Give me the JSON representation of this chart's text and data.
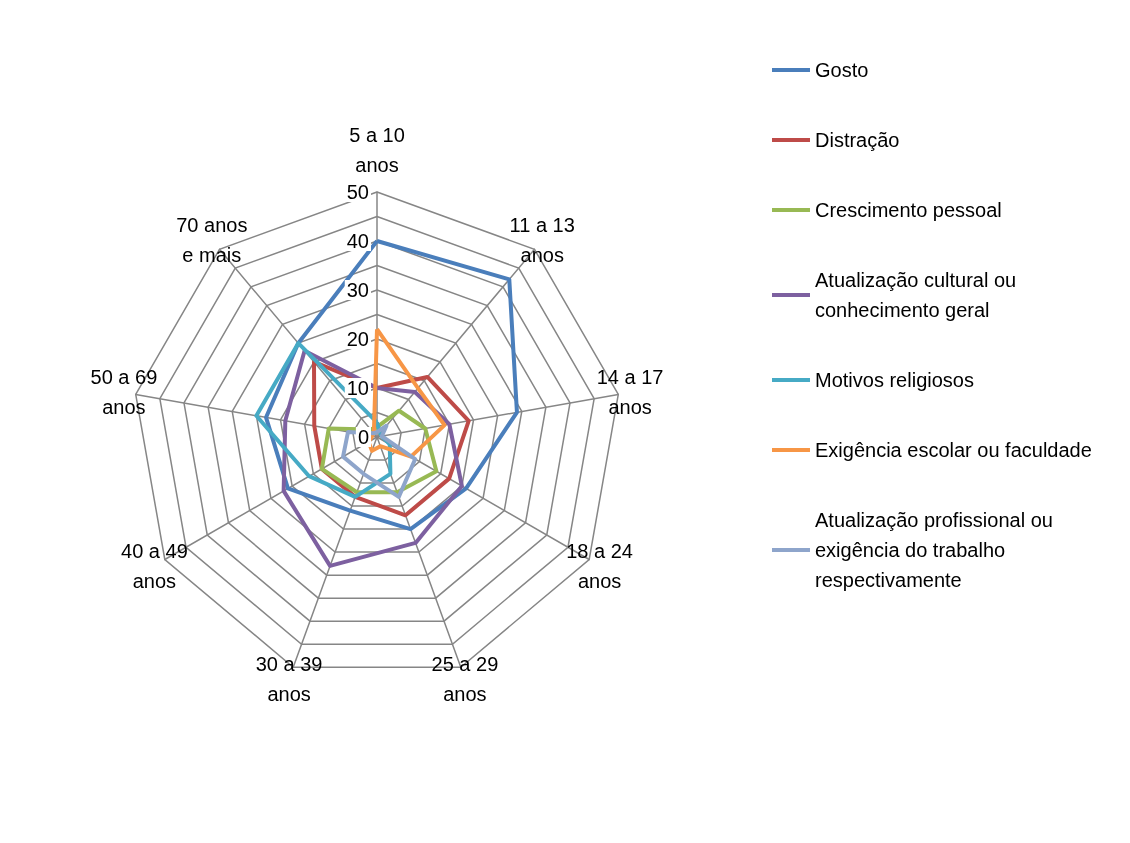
{
  "chart_data": {
    "type": "radar",
    "categories": [
      "5 a 10 anos",
      "11 a 13 anos",
      "14 a 17 anos",
      "18 a 24 anos",
      "25 a 29 anos",
      "30 a 39 anos",
      "40 a 49 anos",
      "50 a 69 anos",
      "70 anos e mais"
    ],
    "ylim": [
      0,
      50
    ],
    "yticks": [
      0,
      10,
      20,
      30,
      40,
      50
    ],
    "legend": "right",
    "grid": true,
    "series": [
      {
        "name": "Gosto",
        "color": "#4a7ebb",
        "values": [
          40,
          42,
          29,
          21,
          20,
          16,
          21,
          23,
          25
        ]
      },
      {
        "name": "Distração",
        "color": "#be4b48",
        "values": [
          10,
          16,
          19,
          17,
          17,
          13,
          13,
          13,
          20
        ]
      },
      {
        "name": "Crescimento pessoal",
        "color": "#98b954",
        "values": [
          2,
          7,
          10,
          14,
          12,
          12,
          13,
          10,
          2
        ]
      },
      {
        "name": "Atualização cultural ou conhecimento geral",
        "color": "#7d60a0",
        "values": [
          10,
          12,
          15,
          20,
          23,
          28,
          22,
          19,
          23
        ]
      },
      {
        "name": "Motivos religiosos",
        "color": "#46aac5",
        "values": [
          3,
          1,
          1,
          3,
          8,
          13,
          16,
          25,
          25
        ]
      },
      {
        "name": "Exigência escolar ou faculdade",
        "color": "#f79646",
        "values": [
          22,
          13,
          14,
          8,
          2,
          3,
          2,
          1,
          1
        ]
      },
      {
        "name": "Atualização profissional ou exigência do trabalho respectivamente",
        "color": "#8ea5cb",
        "values": [
          1,
          3,
          1,
          9,
          13,
          8,
          8,
          6,
          1
        ]
      }
    ]
  }
}
